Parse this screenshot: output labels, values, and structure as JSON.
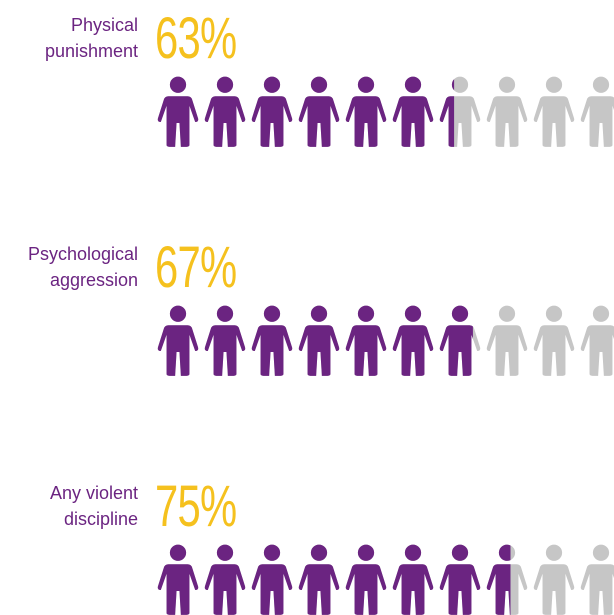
{
  "chart_data": {
    "type": "pictogram",
    "categories": [
      "Physical punishment",
      "Psychological aggression",
      "Any violent discipline"
    ],
    "values": [
      63,
      67,
      75
    ],
    "value_labels": [
      "63%",
      "67%",
      "75%"
    ],
    "xlim": [
      0,
      100
    ],
    "color": "#6b2481",
    "background_color": "#c6c6c6",
    "label_color": "#6b2481",
    "value_label_color": "#f5c11e"
  }
}
